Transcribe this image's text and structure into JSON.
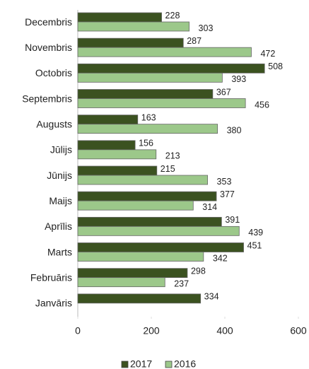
{
  "chart_data": {
    "type": "bar",
    "orientation": "horizontal",
    "categories": [
      "Janvāris",
      "Februāris",
      "Marts",
      "Aprīlis",
      "Maijs",
      "Jūnijs",
      "Jūlijs",
      "Augusts",
      "Septembris",
      "Octobris",
      "Novembris",
      "Decembris"
    ],
    "series": [
      {
        "name": "2017",
        "color": "#3b5220",
        "values": [
          334,
          298,
          451,
          391,
          377,
          215,
          156,
          163,
          367,
          508,
          287,
          228
        ]
      },
      {
        "name": "2016",
        "color": "#9cc88a",
        "values": [
          null,
          237,
          342,
          439,
          314,
          353,
          213,
          380,
          456,
          393,
          472,
          303
        ]
      }
    ],
    "xlim": [
      0,
      600
    ],
    "xticks": [
      0,
      200,
      400,
      600
    ],
    "legend": "bottom"
  }
}
